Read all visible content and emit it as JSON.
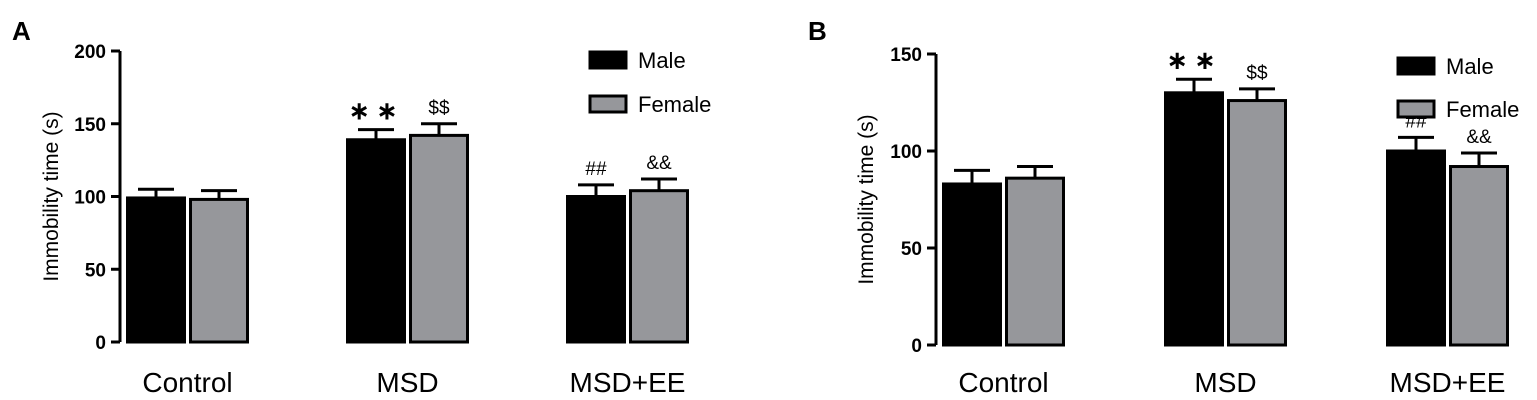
{
  "chart_data": [
    {
      "type": "bar",
      "panel_label": "A",
      "categories": [
        "Control",
        "MSD",
        "MSD+EE"
      ],
      "ylabel": "Immobility time (s)",
      "ylim": [
        0,
        200
      ],
      "yticks": [
        0,
        50,
        100,
        150,
        200
      ],
      "grid": false,
      "legend_position": "top-right",
      "series": [
        {
          "name": "Male",
          "color": "#000000",
          "values": [
            99,
            139,
            100
          ],
          "errors": [
            6,
            7,
            8
          ],
          "annotations": [
            "",
            "∗∗",
            "##"
          ]
        },
        {
          "name": "Female",
          "color": "#96979b",
          "values": [
            98,
            142,
            104
          ],
          "errors": [
            6,
            8,
            8
          ],
          "annotations": [
            "",
            "$$",
            "&&"
          ]
        }
      ]
    },
    {
      "type": "bar",
      "panel_label": "B",
      "categories": [
        "Control",
        "MSD",
        "MSD+EE"
      ],
      "ylabel": "Immobility time (s)",
      "ylim": [
        0,
        150
      ],
      "yticks": [
        0,
        50,
        100,
        150
      ],
      "grid": false,
      "legend_position": "top-right",
      "series": [
        {
          "name": "Male",
          "color": "#000000",
          "values": [
            83,
            130,
            100
          ],
          "errors": [
            7,
            7,
            7
          ],
          "annotations": [
            "",
            "∗∗",
            "##"
          ]
        },
        {
          "name": "Female",
          "color": "#96979b",
          "values": [
            86,
            126,
            92
          ],
          "errors": [
            6,
            6,
            7
          ],
          "annotations": [
            "",
            "$$",
            "&&"
          ]
        }
      ]
    }
  ]
}
